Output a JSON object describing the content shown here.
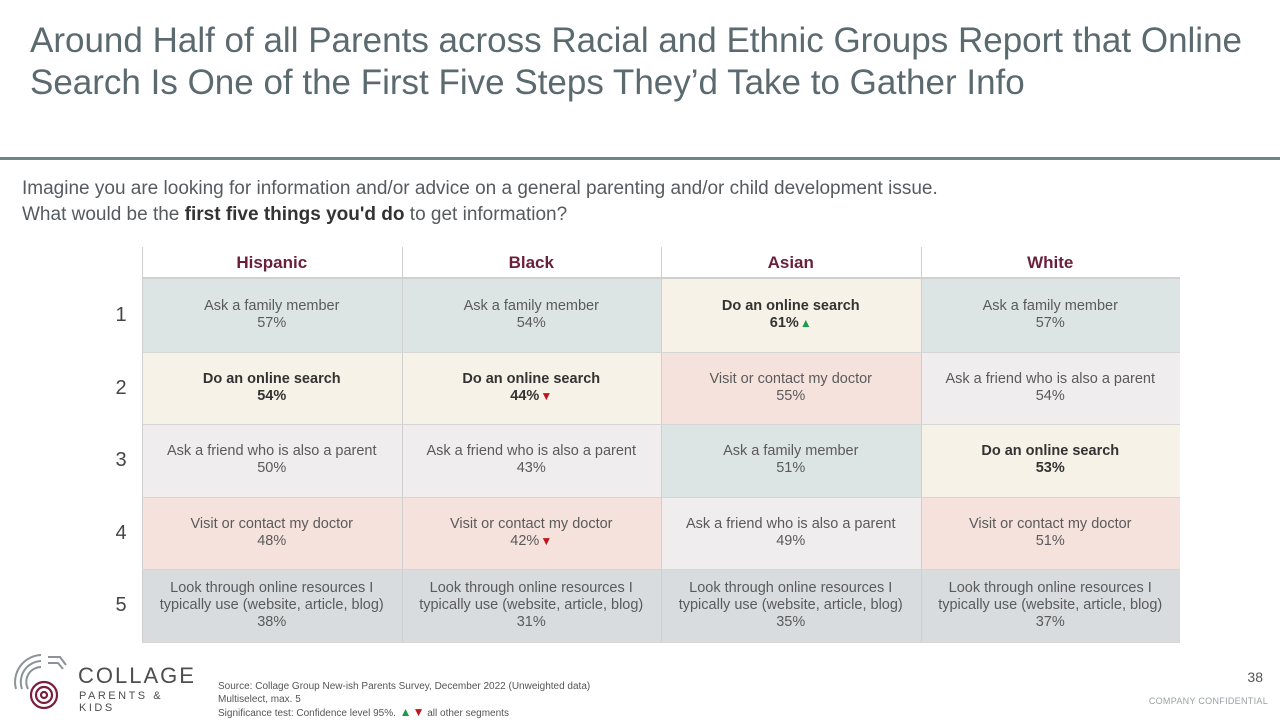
{
  "title": "Around Half of all Parents across Racial and Ethnic Groups Report that Online Search Is One of the First Five Steps They’d Take to Gather Info",
  "question": {
    "line1": "Imagine you are looking for information and/or advice on a general parenting and/or child development issue.",
    "line2_prefix": "What would be the ",
    "line2_bold": "first five things you'd do",
    "line2_suffix": " to get information?"
  },
  "table": {
    "columns": [
      "Hispanic",
      "Black",
      "Asian",
      "White"
    ],
    "row_labels": [
      "1",
      "2",
      "3",
      "4",
      "5"
    ],
    "colors": {
      "family": "#dde5e4",
      "search": "#f6f2e7",
      "doctor": "#f5e2dd",
      "friend": "#efedee",
      "resources": "#d9dcdf"
    },
    "rows": [
      [
        {
          "text": "Ask a family member",
          "pct": "57%",
          "type": "family",
          "bold": false,
          "sig": ""
        },
        {
          "text": "Ask a family member",
          "pct": "54%",
          "type": "family",
          "bold": false,
          "sig": ""
        },
        {
          "text": "Do an online search",
          "pct": "61%",
          "type": "search",
          "bold": true,
          "sig": "▲"
        },
        {
          "text": "Ask a family member",
          "pct": "57%",
          "type": "family",
          "bold": false,
          "sig": ""
        }
      ],
      [
        {
          "text": "Do an online search",
          "pct": "54%",
          "type": "search",
          "bold": true,
          "sig": ""
        },
        {
          "text": "Do an online search",
          "pct": "44%",
          "type": "search",
          "bold": true,
          "sig": "▼"
        },
        {
          "text": "Visit or contact my doctor",
          "pct": "55%",
          "type": "doctor",
          "bold": false,
          "sig": ""
        },
        {
          "text": "Ask a friend who is also a parent",
          "pct": "54%",
          "type": "friend",
          "bold": false,
          "sig": ""
        }
      ],
      [
        {
          "text": "Ask a friend who is also a parent",
          "pct": "50%",
          "type": "friend",
          "bold": false,
          "sig": ""
        },
        {
          "text": "Ask a friend who is also a parent",
          "pct": "43%",
          "type": "friend",
          "bold": false,
          "sig": ""
        },
        {
          "text": "Ask a family member",
          "pct": "51%",
          "type": "family",
          "bold": false,
          "sig": ""
        },
        {
          "text": "Do an online search",
          "pct": "53%",
          "type": "search",
          "bold": true,
          "sig": ""
        }
      ],
      [
        {
          "text": "Visit or contact my doctor",
          "pct": "48%",
          "type": "doctor",
          "bold": false,
          "sig": ""
        },
        {
          "text": "Visit or contact my doctor",
          "pct": "42%",
          "type": "doctor",
          "bold": false,
          "sig": "▼"
        },
        {
          "text": "Ask a friend who is also a parent",
          "pct": "49%",
          "type": "friend",
          "bold": false,
          "sig": ""
        },
        {
          "text": "Visit or contact my doctor",
          "pct": "51%",
          "type": "doctor",
          "bold": false,
          "sig": ""
        }
      ],
      [
        {
          "text": "Look through online resources I typically use (website, article, blog)",
          "pct": "38%",
          "type": "resources",
          "bold": false,
          "sig": ""
        },
        {
          "text": "Look through online resources I typically use (website, article, blog)",
          "pct": "31%",
          "type": "resources",
          "bold": false,
          "sig": ""
        },
        {
          "text": "Look through online resources I typically use (website, article, blog)",
          "pct": "35%",
          "type": "resources",
          "bold": false,
          "sig": ""
        },
        {
          "text": "Look through online resources I typically use (website, article, blog)",
          "pct": "37%",
          "type": "resources",
          "bold": false,
          "sig": ""
        }
      ]
    ]
  },
  "logo": {
    "main": "COLLAGE",
    "sub": "PARENTS & KIDS",
    "icon": "collage-logo-icon",
    "color": "#7a1e3d"
  },
  "source": {
    "line1": "Source: Collage Group New-ish Parents Survey, December 2022 (Unweighted data)",
    "line2": "Multiselect, max. 5",
    "line3_prefix": "Significance test: Confidence level 95%. ",
    "line3_up": "▲",
    "line3_down": "▼",
    "line3_suffix": " all other segments"
  },
  "page_number": "38",
  "confidential": "COMPANY CONFIDENTIAL"
}
